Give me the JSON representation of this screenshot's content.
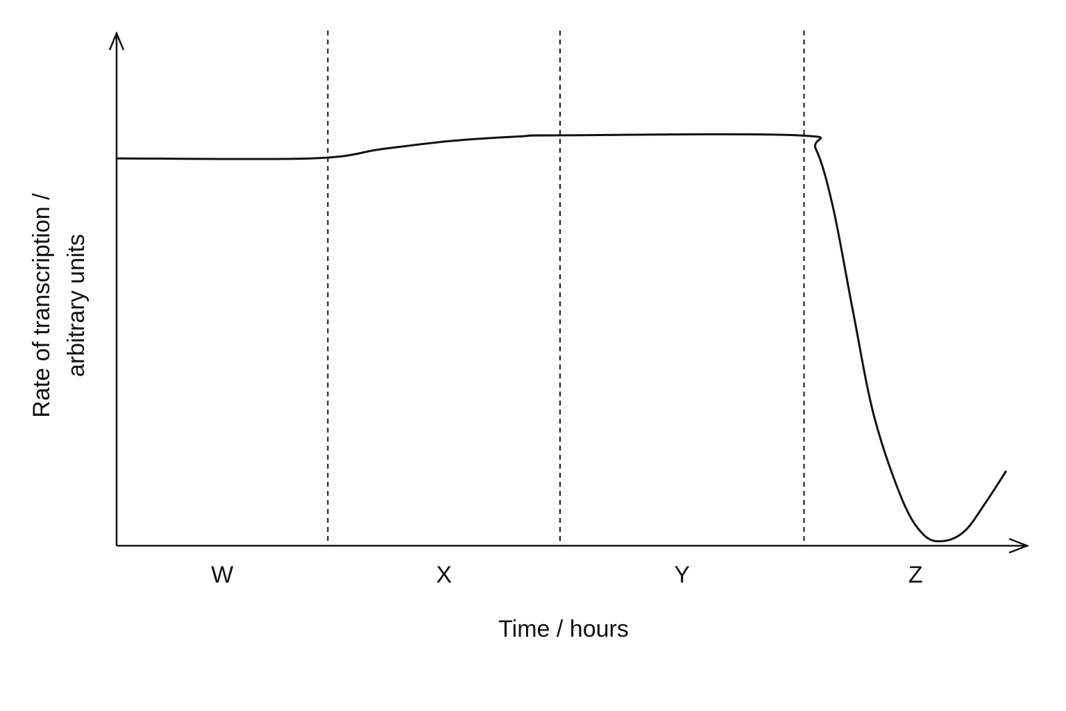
{
  "chart_data": {
    "type": "line",
    "x_label": "Time / hours",
    "y_label": [
      "Rate of transcription /",
      "arbitrary units"
    ],
    "regions": [
      "W",
      "X",
      "Y",
      "Z"
    ],
    "region_bounds": [
      23.2,
      48.7,
      75.5
    ],
    "xlim": [
      0,
      100
    ],
    "ylim": [
      0,
      100
    ],
    "series": [
      {
        "color": "#111111",
        "x": [
          0,
          21.5,
          29.1,
          36.7,
          44.4,
          48.7,
          74.8,
          76.8,
          78.7,
          80.9,
          83.2,
          86.3,
          88.6,
          90.7,
          93.1,
          95.4,
          97.7
        ],
        "values": [
          75.6,
          75.6,
          77.4,
          79.0,
          79.9,
          80.1,
          80.1,
          77.4,
          65.9,
          45.5,
          25.2,
          8.9,
          2.2,
          0.9,
          2.8,
          8.3,
          14.6
        ]
      }
    ]
  }
}
